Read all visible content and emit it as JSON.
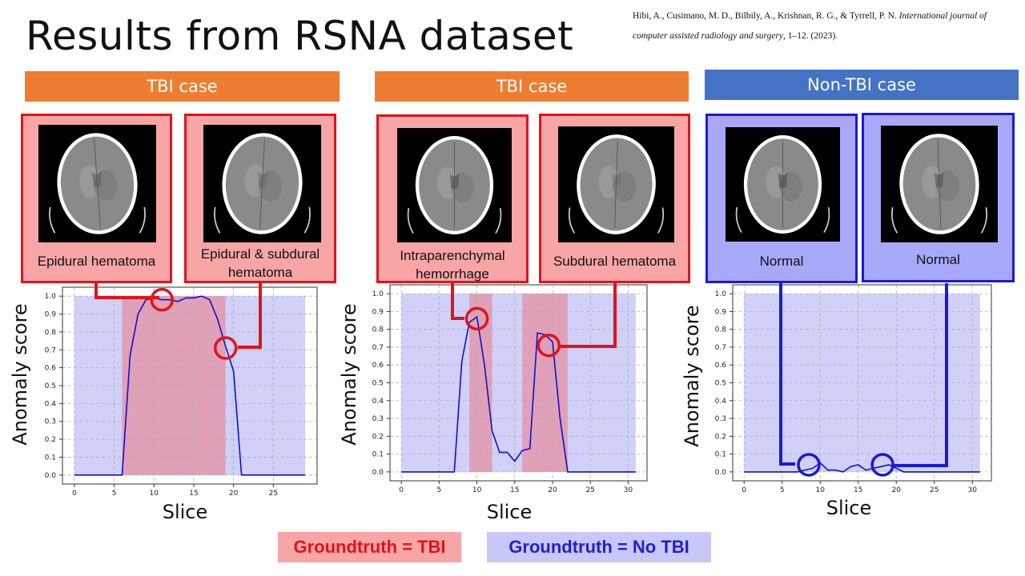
{
  "slide": {
    "title": "Results from RSNA dataset",
    "citation": {
      "authors": "Hibi, A., Cusimano, M. D., Bilbily, A., Krishnan, R. G., & Tyrrell, P. N.",
      "journal": "International journal of computer assisted radiology and surgery",
      "details": ", 1–12. (2023)."
    }
  },
  "panels": [
    {
      "header": "TBI case",
      "header_color": "#ed7d31",
      "cards": [
        {
          "label": "Epidural hematoma",
          "kind": "tbi"
        },
        {
          "label": "Epidural & subdural hematoma",
          "kind": "tbi"
        }
      ]
    },
    {
      "header": "TBI case",
      "header_color": "#ed7d31",
      "cards": [
        {
          "label": "Intraparenchymal hemorrhage",
          "kind": "tbi"
        },
        {
          "label": "Subdural hematoma",
          "kind": "tbi"
        }
      ]
    },
    {
      "header": "Non-TBI case",
      "header_color": "#4472c4",
      "cards": [
        {
          "label": "Normal",
          "kind": "normal"
        },
        {
          "label": "Normal",
          "kind": "normal"
        }
      ]
    }
  ],
  "legend": {
    "tbi": "Groundtruth = TBI",
    "no_tbi": "Groundtruth = No TBI",
    "tbi_color": "#f8a5a5",
    "no_tbi_color": "#c8c8f8"
  },
  "colors": {
    "line": "#1010cc",
    "tbi_band": "#e0a0b8",
    "normal_band": "#d0d0f8",
    "callout_red": "#e0141a",
    "callout_blue": "#1a1ad8"
  },
  "chart_data": [
    {
      "type": "line",
      "xlabel": "Slice",
      "ylabel": "Anomaly score",
      "xlim": [
        -1.5,
        30.5
      ],
      "ylim": [
        -0.05,
        1.05
      ],
      "xticks": [
        0,
        5,
        10,
        15,
        20,
        25
      ],
      "yticks": [
        0.0,
        0.1,
        0.2,
        0.3,
        0.4,
        0.5,
        0.6,
        0.7,
        0.8,
        0.9,
        1.0
      ],
      "grid": true,
      "background_region": [
        0,
        29
      ],
      "tbi_regions": [
        [
          6,
          19
        ]
      ],
      "series": [
        {
          "x": [
            0,
            1,
            2,
            3,
            4,
            5,
            6,
            7,
            8,
            9,
            10,
            11,
            12,
            13,
            14,
            15,
            16,
            17,
            18,
            19,
            20,
            21,
            22,
            23,
            24,
            25,
            26,
            27,
            28,
            29
          ],
          "values": [
            0,
            0,
            0,
            0,
            0,
            0,
            0,
            0.67,
            0.9,
            0.98,
            0.99,
            0.98,
            0.98,
            0.97,
            0.99,
            0.99,
            1.0,
            0.98,
            0.87,
            0.72,
            0.58,
            0,
            0,
            0,
            0,
            0,
            0,
            0,
            0,
            0
          ]
        }
      ],
      "markers": [
        {
          "x": 11,
          "y": 0.98
        },
        {
          "x": 19,
          "y": 0.71
        }
      ]
    },
    {
      "type": "line",
      "xlabel": "Slice",
      "ylabel": "Anomaly score",
      "xlim": [
        -1.5,
        32.5
      ],
      "ylim": [
        -0.05,
        1.05
      ],
      "xticks": [
        0,
        5,
        10,
        15,
        20,
        25,
        30
      ],
      "yticks": [
        0.0,
        0.1,
        0.2,
        0.3,
        0.4,
        0.5,
        0.6,
        0.7,
        0.8,
        0.9,
        1.0
      ],
      "grid": true,
      "background_region": [
        0,
        31
      ],
      "tbi_regions": [
        [
          9,
          12
        ],
        [
          16,
          22
        ]
      ],
      "series": [
        {
          "x": [
            0,
            1,
            2,
            3,
            4,
            5,
            6,
            7,
            8,
            9,
            10,
            11,
            12,
            13,
            14,
            15,
            16,
            17,
            18,
            19,
            20,
            21,
            22,
            23,
            24,
            25,
            26,
            27,
            28,
            29,
            30,
            31
          ],
          "values": [
            0,
            0,
            0,
            0,
            0,
            0,
            0,
            0,
            0.62,
            0.84,
            0.87,
            0.6,
            0.23,
            0.11,
            0.11,
            0.06,
            0.12,
            0.13,
            0.78,
            0.77,
            0.73,
            0.3,
            0,
            0,
            0,
            0,
            0,
            0,
            0,
            0,
            0,
            0
          ]
        }
      ],
      "markers": [
        {
          "x": 10,
          "y": 0.86
        },
        {
          "x": 19.5,
          "y": 0.71
        }
      ]
    },
    {
      "type": "line",
      "xlabel": "Slice",
      "ylabel": "Anomaly score",
      "xlim": [
        -1.5,
        32.5
      ],
      "ylim": [
        -0.05,
        1.05
      ],
      "xticks": [
        0,
        5,
        10,
        15,
        20,
        25,
        30
      ],
      "yticks": [
        0.0,
        0.1,
        0.2,
        0.3,
        0.4,
        0.5,
        0.6,
        0.7,
        0.8,
        0.9,
        1.0
      ],
      "grid": true,
      "background_region": [
        0,
        31
      ],
      "tbi_regions": [],
      "series": [
        {
          "x": [
            0,
            1,
            2,
            3,
            4,
            5,
            6,
            7,
            8,
            9,
            10,
            11,
            12,
            13,
            14,
            15,
            16,
            17,
            18,
            19,
            20,
            21,
            22,
            23,
            24,
            25,
            26,
            27,
            28,
            29,
            30,
            31
          ],
          "values": [
            0,
            0,
            0,
            0,
            0,
            0,
            0,
            0,
            0.01,
            0.02,
            0.05,
            0.01,
            0.01,
            0.0,
            0.03,
            0.04,
            0.01,
            0.02,
            0.03,
            0.04,
            0.02,
            0.0,
            0,
            0,
            0,
            0,
            0,
            0,
            0,
            0,
            0,
            0
          ]
        }
      ],
      "markers": [
        {
          "x": 8.5,
          "y": 0.04
        },
        {
          "x": 18.2,
          "y": 0.04
        }
      ]
    }
  ]
}
